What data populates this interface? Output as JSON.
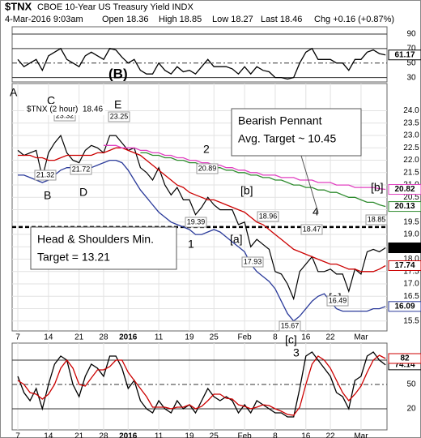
{
  "header": {
    "symbol": "$TNX",
    "name": "CBOE 10-Year US Treasury Yield INDX",
    "date": "4-Mar-2016 9:03am",
    "open": "Open 18.36",
    "high": "High 18.85",
    "low": "Low 18.27",
    "last": "Last 18.46",
    "change": "Chg +0.16 (+0.87%)"
  },
  "chart_data": [
    {
      "type": "line",
      "ylim": [
        24,
        100
      ],
      "yticks": [
        30,
        50,
        70,
        90
      ],
      "grid": true,
      "series": [
        {
          "color": "#000000",
          "values": [
            55,
            45,
            50,
            55,
            40,
            60,
            65,
            70,
            55,
            50,
            45,
            60,
            65,
            60,
            55,
            70,
            68,
            58,
            50,
            55,
            40,
            35,
            35,
            50,
            40,
            35,
            45,
            38,
            40,
            35,
            45,
            55,
            45,
            45,
            45,
            42,
            35,
            45,
            35,
            45,
            40,
            38,
            30,
            30,
            28,
            30,
            50,
            65,
            70,
            55,
            55,
            55,
            50,
            50,
            40,
            55,
            55,
            65,
            68,
            63,
            61.17
          ]
        }
      ],
      "annotations": [
        {
          "text": "(B)",
          "color": "#000000"
        }
      ]
    },
    {
      "type": "line",
      "ylim": [
        15.1,
        25.1
      ],
      "grid": true,
      "yticks": [
        15.5,
        {
          "value": 16,
          "label": "16.0"
        },
        16.5,
        {
          "value": 17,
          "label": "17.0"
        },
        17.5,
        {
          "value": 18,
          "label": "18.0"
        },
        18.5,
        {
          "value": 19,
          "label": "19.0"
        },
        19.5,
        {
          "value": 20,
          "label": "20.0"
        },
        20.5,
        {
          "value": 21,
          "label": "21.0"
        },
        21.5,
        {
          "value": 22,
          "label": "22.0"
        },
        22.5,
        {
          "value": 23,
          "label": "23.0"
        },
        23.5,
        {
          "value": 24,
          "label": "24.0"
        }
      ],
      "categories": [
        "7",
        null,
        null,
        null,
        null,
        "14",
        null,
        null,
        null,
        null,
        "21",
        null,
        null,
        null,
        "28",
        null,
        null,
        null,
        "2016",
        null,
        null,
        null,
        null,
        "11",
        null,
        null,
        null,
        null,
        "19",
        null,
        null,
        null,
        "25",
        null,
        null,
        null,
        null,
        "Feb",
        null,
        null,
        null,
        null,
        "8",
        null,
        null,
        null,
        null,
        "16",
        null,
        null,
        null,
        "22",
        null,
        null,
        null,
        null,
        "Mar",
        null,
        null,
        null,
        null
      ],
      "series": [
        {
          "name": "$TNX (2 hour)",
          "color": "#000000",
          "values": [
            22.4,
            22.2,
            22.3,
            22.4,
            21.3,
            22.3,
            22.7,
            23.0,
            22.3,
            22.0,
            21.9,
            22.4,
            22.6,
            22.5,
            22.3,
            23.0,
            23.0,
            22.7,
            22.4,
            22.5,
            21.7,
            21.5,
            21.2,
            21.7,
            21.0,
            20.6,
            20.9,
            20.4,
            20.4,
            19.8,
            20.1,
            20.5,
            20.2,
            20.0,
            20.0,
            20.0,
            19.4,
            19.5,
            18.5,
            18.8,
            18.6,
            18.4,
            17.5,
            17.4,
            17.0,
            16.4,
            17.5,
            17.8,
            18.1,
            17.5,
            17.5,
            17.6,
            17.4,
            17.4,
            16.7,
            17.6,
            17.4,
            18.3,
            18.4,
            18.3,
            18.46
          ]
        },
        {
          "color": "#cc0000",
          "values": [
            22.2,
            22.2,
            22.2,
            22.1,
            22.1,
            22.0,
            22.0,
            22.1,
            22.2,
            22.2,
            22.2,
            22.2,
            22.2,
            22.3,
            22.3,
            22.4,
            22.5,
            22.5,
            22.4,
            22.3,
            22.2,
            22.0,
            21.8,
            21.6,
            21.4,
            21.2,
            21.0,
            20.9,
            20.7,
            20.6,
            20.5,
            20.4,
            20.4,
            20.3,
            20.2,
            20.1,
            20.0,
            19.9,
            19.7,
            19.5,
            19.4,
            19.2,
            19.0,
            18.8,
            18.6,
            18.4,
            18.3,
            18.2,
            18.1,
            18.0,
            17.9,
            17.8,
            17.8,
            17.7,
            17.6,
            17.6,
            17.5,
            17.5,
            17.5,
            17.6,
            17.74
          ]
        },
        {
          "color": "#e040c0",
          "values": [
            null,
            null,
            null,
            null,
            null,
            null,
            null,
            null,
            null,
            null,
            null,
            null,
            null,
            null,
            22.6,
            22.6,
            22.6,
            22.5,
            22.5,
            22.5,
            22.4,
            22.4,
            22.3,
            22.3,
            22.2,
            22.2,
            22.1,
            22.1,
            22.0,
            22.0,
            21.9,
            21.9,
            21.8,
            21.8,
            21.7,
            21.7,
            21.6,
            21.6,
            21.5,
            21.5,
            21.4,
            21.4,
            21.4,
            21.3,
            21.3,
            21.3,
            21.2,
            21.2,
            21.2,
            21.1,
            21.1,
            21.1,
            21.0,
            21.0,
            21.0,
            20.9,
            20.9,
            20.9,
            20.9,
            20.85,
            20.82
          ]
        },
        {
          "color": "#2e8b2e",
          "values": [
            null,
            null,
            null,
            null,
            null,
            null,
            null,
            null,
            null,
            null,
            null,
            null,
            null,
            null,
            null,
            null,
            null,
            null,
            null,
            null,
            22.3,
            22.3,
            22.2,
            22.2,
            22.1,
            22.1,
            22.0,
            22.0,
            21.9,
            21.9,
            21.8,
            21.8,
            21.7,
            21.7,
            21.6,
            21.6,
            21.5,
            21.5,
            21.4,
            21.4,
            21.3,
            21.3,
            21.2,
            21.2,
            21.1,
            21.0,
            21.0,
            20.9,
            20.9,
            20.8,
            20.8,
            20.7,
            20.7,
            20.6,
            20.5,
            20.5,
            20.4,
            20.3,
            20.3,
            20.2,
            20.13
          ]
        },
        {
          "color": "#2a3a9a",
          "values": [
            21.4,
            21.4,
            21.3,
            21.2,
            21.1,
            21.2,
            21.4,
            21.6,
            21.7,
            21.7,
            21.6,
            21.6,
            21.7,
            21.8,
            21.9,
            22.0,
            22.0,
            21.9,
            21.6,
            21.2,
            20.8,
            20.5,
            20.2,
            19.9,
            19.7,
            19.5,
            19.4,
            19.3,
            19.2,
            19.0,
            19.0,
            19.1,
            19.2,
            19.1,
            18.9,
            18.7,
            18.5,
            18.3,
            17.8,
            17.5,
            17.3,
            17.1,
            16.8,
            16.3,
            15.8,
            15.5,
            15.7,
            16.0,
            16.3,
            16.5,
            16.6,
            16.3,
            16.0,
            15.9,
            15.9,
            15.9,
            15.9,
            15.9,
            16.0,
            16.0,
            16.09
          ]
        }
      ],
      "hlines": [
        19.3
      ],
      "annotations": [
        {
          "text": "A",
          "color": "#8a2be2"
        },
        {
          "text": "C",
          "color": "#8a2be2"
        },
        {
          "text": "E",
          "color": "#8a2be2"
        },
        {
          "text": "B",
          "color": "#8a2be2"
        },
        {
          "text": "D",
          "color": "#8a2be2"
        },
        {
          "text": "2",
          "color": "#8a2be2"
        },
        {
          "text": "1",
          "color": "#8a2be2"
        },
        {
          "text": "[b]",
          "color": "#cc0000"
        },
        {
          "text": "[a]",
          "color": "#cc0000"
        },
        {
          "text": "4",
          "color": "#8a2be2"
        },
        {
          "text": "[b]",
          "color": "#cc0000"
        },
        {
          "text": "[a]",
          "color": "#cc0000"
        },
        {
          "text": "[c]",
          "color": "#cc0000"
        }
      ],
      "price_labels": [
        "23.32",
        "23.25",
        "21.32",
        "21.72",
        "20.89",
        "19.39",
        "18.96",
        "17.93",
        "18.47",
        "15.67",
        "16.49",
        "18.85"
      ],
      "callouts": [
        {
          "lines": [
            "Bearish Pennant",
            "Avg. Target ~ 10.45"
          ]
        },
        {
          "lines": [
            "Head & Shoulders Min.",
            "Target = 13.21"
          ]
        }
      ]
    },
    {
      "type": "line",
      "ylim": [
        -6,
        101
      ],
      "yticks": [
        20,
        50,
        80
      ],
      "grid": true,
      "categories": [
        "7",
        null,
        null,
        null,
        null,
        "14",
        null,
        null,
        null,
        null,
        "21",
        null,
        null,
        null,
        "28",
        null,
        null,
        null,
        "2016",
        null,
        null,
        null,
        null,
        "11",
        null,
        null,
        null,
        null,
        "19",
        null,
        null,
        null,
        "25",
        null,
        null,
        null,
        null,
        "Feb",
        null,
        null,
        null,
        null,
        "8",
        null,
        null,
        null,
        null,
        "16",
        null,
        null,
        null,
        "22",
        null,
        null,
        null,
        null,
        "Mar",
        null,
        null,
        null,
        null
      ],
      "series": [
        {
          "color": "#000000",
          "values": [
            60,
            40,
            30,
            45,
            20,
            50,
            75,
            85,
            80,
            50,
            35,
            60,
            75,
            70,
            60,
            85,
            85,
            70,
            45,
            55,
            30,
            20,
            15,
            30,
            20,
            15,
            30,
            20,
            25,
            15,
            30,
            45,
            35,
            30,
            35,
            30,
            15,
            25,
            15,
            30,
            25,
            20,
            15,
            15,
            10,
            10,
            45,
            85,
            90,
            80,
            70,
            60,
            40,
            35,
            20,
            55,
            60,
            85,
            90,
            80,
            74.14
          ]
        },
        {
          "color": "#cc0000",
          "values": [
            55,
            50,
            40,
            38,
            32,
            38,
            50,
            70,
            80,
            70,
            50,
            48,
            58,
            68,
            68,
            72,
            80,
            80,
            65,
            55,
            45,
            35,
            22,
            22,
            22,
            20,
            22,
            22,
            25,
            20,
            23,
            30,
            38,
            38,
            33,
            32,
            25,
            23,
            20,
            22,
            25,
            24,
            20,
            17,
            13,
            12,
            22,
            50,
            75,
            85,
            80,
            70,
            55,
            40,
            30,
            38,
            48,
            65,
            80,
            86,
            82
          ]
        }
      ],
      "annotations": [
        {
          "text": "3",
          "color": "#8a2be2"
        }
      ]
    }
  ]
}
